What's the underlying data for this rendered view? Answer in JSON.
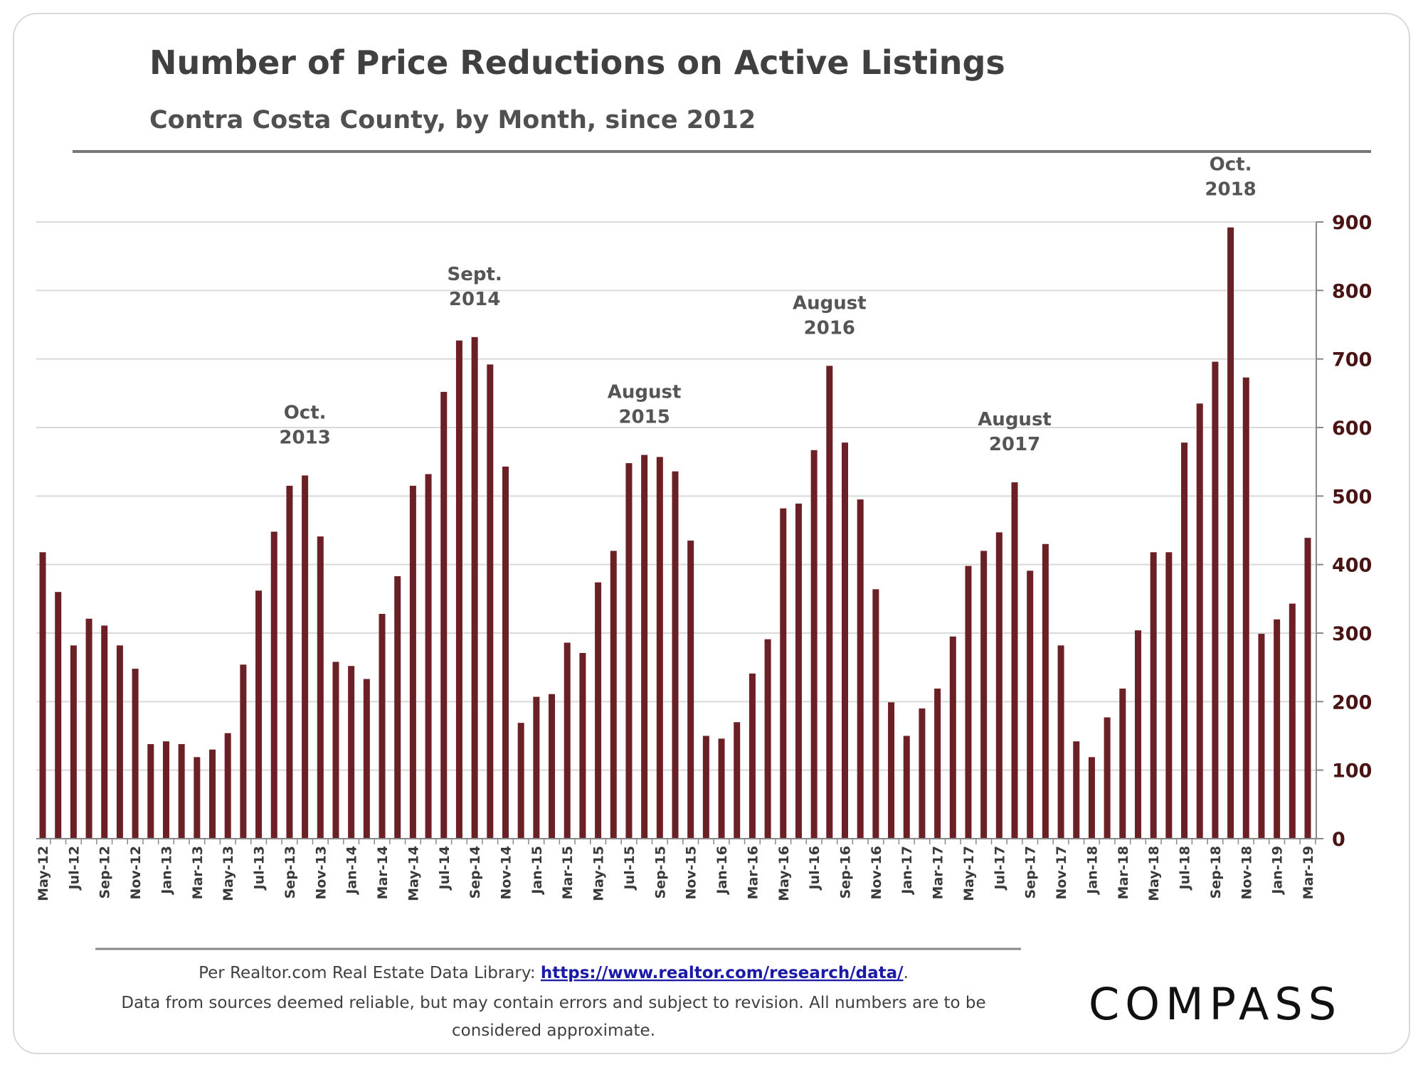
{
  "chart_data": {
    "type": "bar",
    "title": "Number of Price Reductions on Active Listings",
    "subtitle": "Contra Costa County, by Month, since 2012",
    "xlabel": "",
    "ylabel": "",
    "ylim": [
      0,
      900
    ],
    "yticks": [
      0,
      100,
      200,
      300,
      400,
      500,
      600,
      700,
      800,
      900
    ],
    "y_axis_side": "right",
    "grid": true,
    "bar_color": "#6a2024",
    "categories": [
      "May-12",
      "Jun-12",
      "Jul-12",
      "Aug-12",
      "Sep-12",
      "Oct-12",
      "Nov-12",
      "Dec-12",
      "Jan-13",
      "Feb-13",
      "Mar-13",
      "Apr-13",
      "May-13",
      "Jun-13",
      "Jul-13",
      "Aug-13",
      "Sep-13",
      "Oct-13",
      "Nov-13",
      "Dec-13",
      "Jan-14",
      "Feb-14",
      "Mar-14",
      "Apr-14",
      "May-14",
      "Jun-14",
      "Jul-14",
      "Aug-14",
      "Sep-14",
      "Oct-14",
      "Nov-14",
      "Dec-14",
      "Jan-15",
      "Feb-15",
      "Mar-15",
      "Apr-15",
      "May-15",
      "Jun-15",
      "Jul-15",
      "Aug-15",
      "Sep-15",
      "Oct-15",
      "Nov-15",
      "Dec-15",
      "Jan-16",
      "Feb-16",
      "Mar-16",
      "Apr-16",
      "May-16",
      "Jun-16",
      "Jul-16",
      "Aug-16",
      "Sep-16",
      "Oct-16",
      "Nov-16",
      "Dec-16",
      "Jan-17",
      "Feb-17",
      "Mar-17",
      "Apr-17",
      "May-17",
      "Jun-17",
      "Jul-17",
      "Aug-17",
      "Sep-17",
      "Oct-17",
      "Nov-17",
      "Dec-17",
      "Jan-18",
      "Feb-18",
      "Mar-18",
      "Apr-18",
      "May-18",
      "Jun-18",
      "Jul-18",
      "Aug-18",
      "Sep-18",
      "Oct-18",
      "Nov-18",
      "Dec-18",
      "Jan-19",
      "Feb-19",
      "Mar-19"
    ],
    "values": [
      418,
      360,
      282,
      321,
      311,
      282,
      248,
      138,
      142,
      138,
      119,
      130,
      154,
      254,
      362,
      448,
      515,
      530,
      441,
      258,
      252,
      233,
      328,
      383,
      515,
      532,
      652,
      727,
      732,
      692,
      543,
      169,
      207,
      211,
      286,
      271,
      374,
      420,
      548,
      560,
      557,
      536,
      435,
      150,
      146,
      170,
      241,
      291,
      482,
      489,
      567,
      690,
      578,
      495,
      364,
      199,
      150,
      190,
      219,
      295,
      398,
      420,
      447,
      520,
      391,
      430,
      282,
      142,
      119,
      177,
      219,
      304,
      418,
      418,
      578,
      635,
      696,
      892,
      673,
      299,
      320,
      343,
      439
    ],
    "annotations": [
      {
        "category": "Oct-13",
        "lines": [
          "Oct.",
          "2013"
        ]
      },
      {
        "category": "Sep-14",
        "lines": [
          "Sept.",
          "2014"
        ]
      },
      {
        "category": "Aug-15",
        "lines": [
          "August",
          "2015"
        ]
      },
      {
        "category": "Aug-16",
        "lines": [
          "August",
          "2016"
        ]
      },
      {
        "category": "Aug-17",
        "lines": [
          "August",
          "2017"
        ]
      },
      {
        "category": "Oct-18",
        "lines": [
          "Oct.",
          "2018"
        ]
      }
    ]
  },
  "footer": {
    "source_prefix": "Per Realtor.com  Real Estate Data Library: ",
    "source_link": "https://www.realtor.com/research/data/",
    "source_suffix": ".",
    "disclaimer_line1": "Data from sources deemed reliable, but may contain errors and subject to revision. All numbers are to be",
    "disclaimer_line2": "considered approximate.",
    "logo": "COMPASS"
  }
}
